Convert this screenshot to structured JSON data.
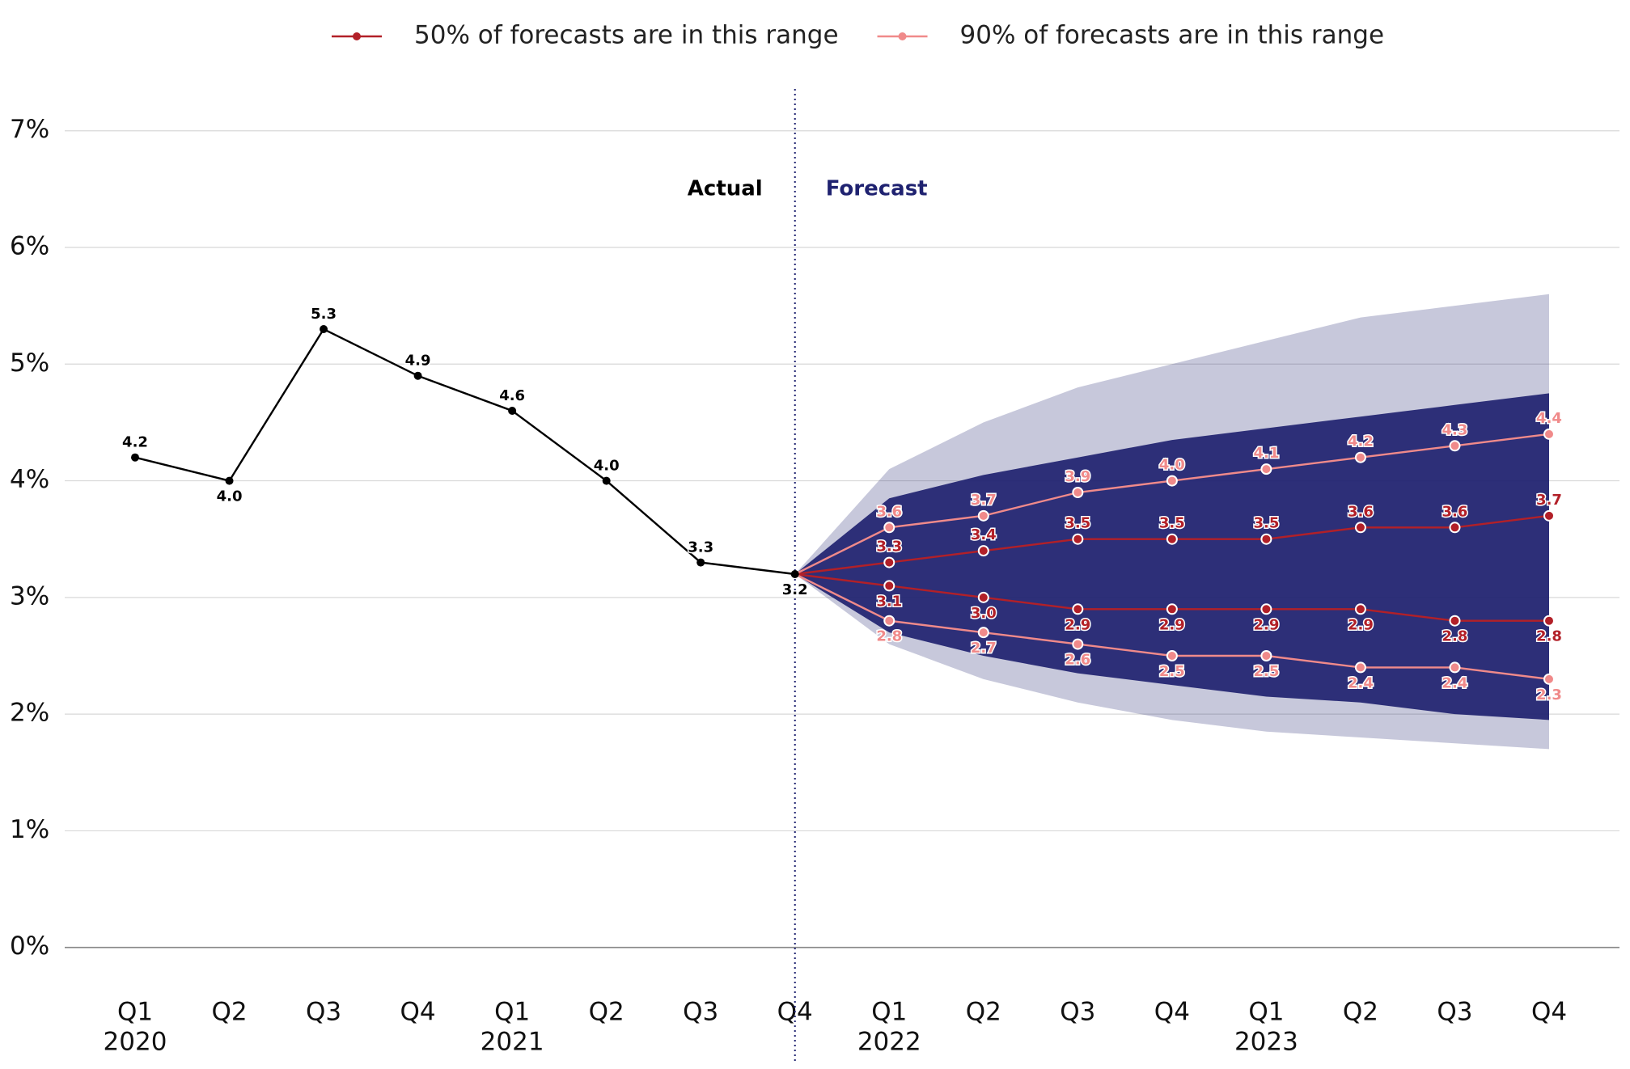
{
  "chart_data": {
    "type": "fan",
    "categories": [
      "Q1",
      "Q2",
      "Q3",
      "Q4",
      "Q1",
      "Q2",
      "Q3",
      "Q4",
      "Q1",
      "Q2",
      "Q3",
      "Q4",
      "Q1",
      "Q2",
      "Q3",
      "Q4"
    ],
    "year_labels": [
      "2020",
      null,
      null,
      null,
      "2021",
      null,
      null,
      null,
      "2022",
      null,
      null,
      null,
      "2023",
      null,
      null,
      null
    ],
    "ylim": [
      -1,
      7.4
    ],
    "yticks": [
      {
        "value": 0,
        "label": "0%"
      },
      {
        "value": 1,
        "label": "1%"
      },
      {
        "value": 2,
        "label": "2%"
      },
      {
        "value": 3,
        "label": "3%"
      },
      {
        "value": 4,
        "label": "4%"
      },
      {
        "value": 5,
        "label": "5%"
      },
      {
        "value": 6,
        "label": "6%"
      },
      {
        "value": 7,
        "label": "7%"
      }
    ],
    "grid": true,
    "legend": "top",
    "divider_index": 7,
    "annotations": {
      "left": "Actual",
      "right": "Forecast"
    },
    "actual": {
      "color": "#000000",
      "values": [
        4.2,
        4.0,
        5.3,
        4.9,
        4.6,
        4.0,
        3.3,
        3.2,
        null,
        null,
        null,
        null,
        null,
        null,
        null,
        null
      ],
      "value_labels": [
        "4.2",
        "4.0",
        "5.3",
        "4.9",
        "4.6",
        "4.0",
        "3.3",
        "3.2",
        null,
        null,
        null,
        null,
        null,
        null,
        null,
        null
      ]
    },
    "fans": [
      {
        "color": "#1f2270",
        "opacity": 0.25,
        "upper": [
          null,
          null,
          null,
          null,
          null,
          null,
          null,
          3.2,
          4.1,
          4.5,
          4.8,
          5.0,
          5.2,
          5.4,
          5.5,
          5.6
        ],
        "lower": [
          null,
          null,
          null,
          null,
          null,
          null,
          null,
          3.2,
          2.6,
          2.3,
          2.1,
          1.95,
          1.85,
          1.8,
          1.75,
          1.7
        ]
      },
      {
        "color": "#1f2270",
        "opacity": 0.92,
        "upper": [
          null,
          null,
          null,
          null,
          null,
          null,
          null,
          3.2,
          3.85,
          4.05,
          4.2,
          4.35,
          4.45,
          4.55,
          4.65,
          4.75
        ],
        "lower": [
          null,
          null,
          null,
          null,
          null,
          null,
          null,
          3.2,
          2.7,
          2.5,
          2.35,
          2.25,
          2.15,
          2.1,
          2.0,
          1.95
        ]
      }
    ],
    "series": [
      {
        "name": "50% of forecasts are in this range",
        "color": "#b22028",
        "upper": [
          null,
          null,
          null,
          null,
          null,
          null,
          null,
          3.2,
          3.3,
          3.4,
          3.5,
          3.5,
          3.5,
          3.6,
          3.6,
          3.7
        ],
        "upper_labels": [
          null,
          null,
          null,
          null,
          null,
          null,
          null,
          null,
          "3.3",
          "3.4",
          "3.5",
          "3.5",
          "3.5",
          "3.6",
          "3.6",
          "3.7"
        ],
        "lower": [
          null,
          null,
          null,
          null,
          null,
          null,
          null,
          3.2,
          3.1,
          3.0,
          2.9,
          2.9,
          2.9,
          2.9,
          2.8,
          2.8
        ],
        "lower_labels": [
          null,
          null,
          null,
          null,
          null,
          null,
          null,
          null,
          "3.1",
          "3.0",
          "2.9",
          "2.9",
          "2.9",
          "2.9",
          "2.8",
          "2.8"
        ]
      },
      {
        "name": "90% of forecasts are in this range",
        "color": "#f08a8a",
        "upper": [
          null,
          null,
          null,
          null,
          null,
          null,
          null,
          3.2,
          3.6,
          3.7,
          3.9,
          4.0,
          4.1,
          4.2,
          4.3,
          4.4
        ],
        "upper_labels": [
          null,
          null,
          null,
          null,
          null,
          null,
          null,
          null,
          "3.6",
          "3.7",
          "3.9",
          "4.0",
          "4.1",
          "4.2",
          "4.3",
          "4.4"
        ],
        "lower": [
          null,
          null,
          null,
          null,
          null,
          null,
          null,
          3.2,
          2.8,
          2.7,
          2.6,
          2.5,
          2.5,
          2.4,
          2.4,
          2.3
        ],
        "lower_labels": [
          null,
          null,
          null,
          null,
          null,
          null,
          null,
          null,
          "2.8",
          "2.7",
          "2.6",
          "2.5",
          "2.5",
          "2.4",
          "2.4",
          "2.3"
        ]
      }
    ]
  }
}
